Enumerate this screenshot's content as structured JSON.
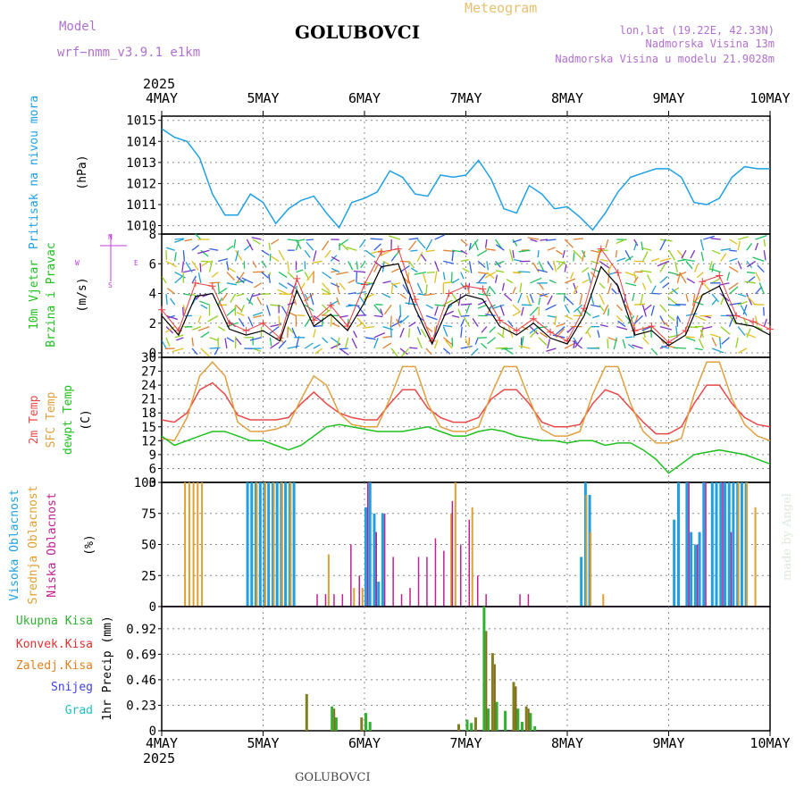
{
  "header": {
    "model_label": "Model",
    "model_name": "wrf−nmm_v3.9.1  e1km",
    "station": "GOLUBOVCI",
    "meteogram": "Meteogram",
    "lonlat": "lon,lat (19.22E, 42.33N)",
    "elevation": "Nadmorska Visina 13m",
    "model_elevation": "Nadmorska Visina u modelu 21.9028m",
    "year": "2025",
    "footer_station": "GOLUBOVCI",
    "watermark": "made by Angel"
  },
  "colors": {
    "pressure": "#1ea0e6",
    "wind_mean": "#000000",
    "wind_gust": "#e84040",
    "temp2m": "#e84848",
    "sfc_temp": "#e0a040",
    "dewpt": "#20c020",
    "cloud_high": "#20a0e0",
    "cloud_mid": "#e0a030",
    "cloud_low": "#c02090",
    "precip_total": "#30b030",
    "precip_conv": "#e03030",
    "precip_grid": "#e08020",
    "snow": "#4040e0",
    "graupel": "#20c0c0",
    "compass": "#c040e0"
  },
  "x_axis": {
    "ticks": [
      "4MAY",
      "5MAY",
      "6MAY",
      "7MAY",
      "8MAY",
      "9MAY",
      "10MAY"
    ],
    "bottom_year": "2025"
  },
  "panels": {
    "pressure": {
      "l1": "Pritisak na nivou mora",
      "unit": "(hPa)"
    },
    "wind": {
      "l1": "10m Vjetar",
      "l2": "Brzina i Pravac",
      "unit": "(m/s)",
      "compass_n": "N",
      "compass_s": "S",
      "compass_w": "W",
      "compass_e": "E"
    },
    "temp": {
      "l1": "2m Temp",
      "l2": "SFC Temp",
      "l3": "dewpt Temp",
      "unit": "(C)"
    },
    "cloud": {
      "l1": "Visoka Oblacnost",
      "l2": "Srednja Oblacnost",
      "l3": "Niska Oblacnost",
      "unit": "(%)"
    },
    "precip": {
      "l1": "Ukupna Kisa",
      "l2": "Konvek.Kisa",
      "l3": "Zaledj.Kisa",
      "l4": "Snijeg",
      "l5": "Grad",
      "unit": "1hr Precip (mm)"
    }
  },
  "chart_data": [
    {
      "type": "line",
      "name": "pressure",
      "x_unit": "hours since 4MAY 00",
      "yticks": [
        1010,
        1011,
        1012,
        1013,
        1014,
        1015
      ],
      "ylim": [
        1009.6,
        1015.2
      ],
      "x": [
        0,
        3,
        6,
        9,
        12,
        15,
        18,
        21,
        24,
        27,
        30,
        33,
        36,
        39,
        42,
        45,
        48,
        51,
        54,
        57,
        60,
        63,
        66,
        69,
        72,
        75,
        78,
        81,
        84,
        87,
        90,
        93,
        96,
        99,
        102,
        105,
        108,
        111,
        114,
        117,
        120,
        123,
        126,
        129,
        132,
        135,
        138,
        141,
        144
      ],
      "values": [
        1014.6,
        1014.2,
        1014.0,
        1013.2,
        1011.5,
        1010.5,
        1010.5,
        1011.5,
        1011.1,
        1010.1,
        1010.8,
        1011.2,
        1011.4,
        1010.6,
        1009.9,
        1011.1,
        1011.3,
        1011.6,
        1012.6,
        1012.3,
        1011.5,
        1011.4,
        1012.4,
        1012.3,
        1012.4,
        1013.1,
        1012.2,
        1010.8,
        1010.6,
        1011.9,
        1011.5,
        1010.8,
        1010.9,
        1010.4,
        1009.8,
        1010.6,
        1011.6,
        1012.3,
        1012.5,
        1012.7,
        1012.7,
        1012.3,
        1011.1,
        1011.0,
        1011.3,
        1012.3,
        1012.8,
        1012.7,
        1012.7
      ]
    },
    {
      "type": "line",
      "name": "wind",
      "x_unit": "hours since 4MAY 00",
      "yticks": [
        0,
        2,
        4,
        6,
        8
      ],
      "ylim": [
        -0.3,
        8
      ],
      "x": [
        0,
        4,
        8,
        12,
        16,
        20,
        24,
        28,
        32,
        36,
        40,
        44,
        48,
        52,
        56,
        60,
        64,
        68,
        72,
        76,
        80,
        84,
        88,
        92,
        96,
        100,
        104,
        108,
        112,
        116,
        120,
        124,
        128,
        132,
        136,
        140,
        144
      ],
      "mean_speed": [
        2.5,
        1.2,
        3.8,
        4.0,
        1.6,
        1.2,
        1.5,
        0.8,
        4.2,
        1.8,
        2.6,
        1.5,
        3.4,
        5.8,
        6.0,
        3.0,
        0.6,
        3.2,
        3.9,
        3.6,
        1.8,
        1.2,
        2.0,
        1.0,
        0.6,
        2.5,
        5.8,
        4.5,
        1.2,
        1.5,
        0.5,
        1.2,
        3.9,
        4.5,
        2.0,
        1.8,
        1.2
      ],
      "gust_speed": [
        2.9,
        1.5,
        4.7,
        4.5,
        2.0,
        1.5,
        2.0,
        1.0,
        5.0,
        2.2,
        3.2,
        1.8,
        4.6,
        6.8,
        7.0,
        3.6,
        0.8,
        4.0,
        4.5,
        4.3,
        2.2,
        1.5,
        2.3,
        1.4,
        0.8,
        3.0,
        7.0,
        5.4,
        1.5,
        1.8,
        0.7,
        1.5,
        4.8,
        5.2,
        2.5,
        2.1,
        1.6
      ]
    },
    {
      "type": "line",
      "name": "temperature",
      "x_unit": "hours since 4MAY 00",
      "yticks": [
        3,
        6,
        9,
        12,
        15,
        18,
        21,
        24,
        27,
        30
      ],
      "ylim": [
        3,
        30
      ],
      "x": [
        0,
        3,
        6,
        9,
        12,
        15,
        18,
        21,
        24,
        27,
        30,
        33,
        36,
        39,
        42,
        45,
        48,
        51,
        54,
        57,
        60,
        63,
        66,
        69,
        72,
        75,
        78,
        81,
        84,
        87,
        90,
        93,
        96,
        99,
        102,
        105,
        108,
        111,
        114,
        117,
        120,
        123,
        126,
        129,
        132,
        135,
        138,
        141,
        144
      ],
      "series": [
        {
          "name": "2m Temp",
          "values": [
            16.5,
            16,
            18,
            23,
            24.5,
            22,
            17.5,
            16.5,
            16.5,
            16.5,
            17,
            20,
            22.5,
            20,
            18,
            17,
            16.5,
            16.5,
            20,
            23,
            23,
            19,
            17,
            16,
            16,
            17,
            21,
            23,
            23,
            20,
            16,
            15,
            15,
            15.5,
            20,
            23,
            22,
            19,
            16,
            13.5,
            13.5,
            15,
            20,
            24,
            24,
            20,
            17,
            15.5,
            15
          ]
        },
        {
          "name": "SFC Temp",
          "values": [
            12.5,
            12,
            17,
            26,
            29,
            26,
            16,
            14,
            14,
            14.5,
            15.5,
            21,
            26,
            24,
            18,
            15.5,
            15,
            15,
            21,
            28,
            28,
            20,
            15,
            14,
            14,
            15,
            22,
            28,
            28,
            21,
            14.5,
            13,
            13,
            14,
            22,
            28,
            28,
            20,
            14,
            11.5,
            11.5,
            12.5,
            22,
            29,
            29,
            21,
            15.5,
            13,
            12
          ]
        },
        {
          "name": "dewpt Temp",
          "values": [
            13,
            11,
            12,
            13,
            14,
            14,
            13,
            12,
            12,
            11,
            10,
            11,
            13,
            15,
            15.5,
            15,
            14.5,
            14,
            14,
            14,
            14.5,
            15,
            14,
            13,
            13,
            14,
            14.5,
            14,
            13,
            12.5,
            12,
            12,
            11.5,
            12,
            12,
            11,
            11.5,
            11.5,
            10,
            8,
            5,
            7,
            9,
            9.5,
            10,
            9.5,
            9,
            8,
            7
          ]
        }
      ]
    },
    {
      "type": "bar",
      "name": "cloud",
      "x_unit": "hours since 4MAY 00",
      "yticks": [
        0,
        25,
        50,
        75,
        100
      ],
      "ylim": [
        0,
        100
      ],
      "series": [
        {
          "name": "Visoka Oblacnost",
          "x": [
            20,
            21,
            22,
            23,
            24,
            25,
            26,
            27,
            28,
            29,
            30,
            31,
            48,
            49,
            50,
            51,
            52,
            99,
            100,
            101,
            121,
            122,
            124,
            125,
            126,
            127,
            128,
            130,
            131,
            132,
            133,
            134,
            135,
            136,
            137,
            138
          ],
          "values": [
            100,
            100,
            100,
            100,
            100,
            100,
            100,
            100,
            100,
            100,
            100,
            100,
            80,
            100,
            75,
            20,
            75,
            40,
            100,
            90,
            70,
            100,
            100,
            60,
            50,
            60,
            100,
            100,
            100,
            100,
            100,
            100,
            100,
            100,
            100,
            100
          ]
        },
        {
          "name": "Srednja Oblacnost",
          "x": [
            5,
            6,
            7,
            8,
            9,
            22,
            24,
            26,
            28,
            30,
            39,
            45,
            47,
            68,
            69,
            73,
            100,
            101,
            104,
            136,
            138,
            140
          ],
          "values": [
            100,
            100,
            100,
            100,
            100,
            100,
            100,
            100,
            100,
            100,
            42,
            15,
            15,
            75,
            100,
            80,
            90,
            60,
            10,
            100,
            100,
            80
          ]
        },
        {
          "name": "Niska Oblacnost",
          "x": [
            36,
            38,
            40,
            42,
            44,
            46,
            48,
            50,
            52,
            54,
            56,
            58,
            60,
            62,
            64,
            66,
            68,
            70,
            72,
            74,
            76,
            84,
            86,
            124,
            126,
            128,
            132,
            134
          ],
          "values": [
            10,
            10,
            10,
            10,
            50,
            25,
            100,
            60,
            75,
            40,
            10,
            15,
            40,
            40,
            55,
            45,
            85,
            50,
            70,
            25,
            10,
            10,
            10,
            100,
            50,
            100,
            100,
            60
          ]
        }
      ]
    },
    {
      "type": "bar",
      "name": "precipitation",
      "x_unit": "hours since 4MAY 00",
      "yticks": [
        0,
        0.23,
        0.46,
        0.69,
        0.92
      ],
      "ylim": [
        0,
        1.12
      ],
      "series": [
        {
          "name": "Ukupna Kisa",
          "x": [
            34,
            40,
            41,
            47,
            48,
            49,
            70,
            72,
            73,
            74,
            76,
            77,
            78,
            79,
            81,
            83,
            84,
            85,
            86,
            87,
            88
          ],
          "values": [
            0.33,
            0.22,
            0.12,
            0.12,
            0.16,
            0.08,
            0.06,
            0.1,
            0.07,
            0.12,
            1.12,
            0.2,
            0.7,
            0.26,
            0.18,
            0.44,
            0.2,
            0.08,
            0.22,
            0.16,
            0.04
          ]
        },
        {
          "name": "Konvek.Kisa",
          "x": [
            40,
            76,
            78,
            83,
            86
          ],
          "values": [
            0.2,
            0.9,
            0.6,
            0.4,
            0.2
          ]
        }
      ]
    }
  ]
}
